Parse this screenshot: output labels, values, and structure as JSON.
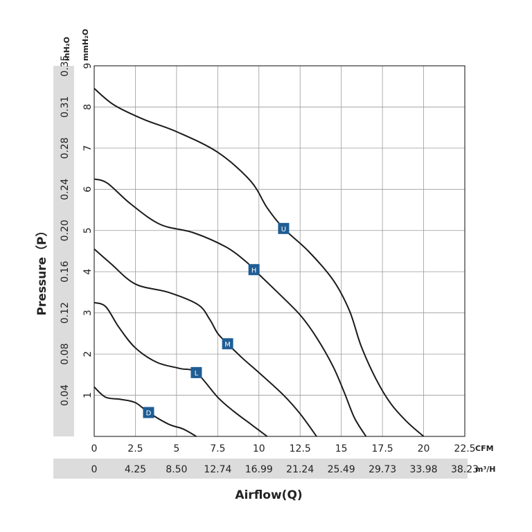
{
  "chart_data": {
    "type": "line",
    "xlabel": "Airflow(Q)",
    "ylabel": "Pressure（P）",
    "x_unit_primary": "CFM",
    "x_unit_secondary": "m³/H",
    "y_unit_primary": "mmH₂O",
    "y_unit_secondary": "inH₂O",
    "xlim": [
      0,
      22.5
    ],
    "ylim": [
      0,
      9
    ],
    "grid": true,
    "x_ticks_primary": [
      "0",
      "2.5",
      "5",
      "7.5",
      "10",
      "12.5",
      "15",
      "17.5",
      "20",
      "22.5"
    ],
    "x_ticks_secondary": [
      "0",
      "4.25",
      "8.50",
      "12.74",
      "16.99",
      "21.24",
      "25.49",
      "29.73",
      "33.98",
      "38.23"
    ],
    "y_ticks_primary": [
      "1",
      "2",
      "3",
      "4",
      "5",
      "6",
      "7",
      "8",
      "9"
    ],
    "y_ticks_secondary": [
      "0.04",
      "0.08",
      "0.12",
      "0.16",
      "0.20",
      "0.24",
      "0.28",
      "0.31",
      "0.35"
    ],
    "series": [
      {
        "name": "U",
        "label_at": [
          11.5,
          5.05
        ],
        "x": [
          0,
          1.2,
          3,
          5,
          7.5,
          9.5,
          10.5,
          11.5,
          13,
          14.5,
          15.5,
          16.2,
          17.1,
          18,
          19,
          20
        ],
        "y": [
          8.45,
          8.05,
          7.7,
          7.4,
          6.9,
          6.2,
          5.55,
          5.05,
          4.5,
          3.8,
          3.05,
          2.2,
          1.4,
          0.8,
          0.35,
          0
        ]
      },
      {
        "name": "H",
        "label_at": [
          9.7,
          4.05
        ],
        "x": [
          0,
          0.8,
          2.2,
          4,
          6,
          8,
          9.2,
          9.7,
          11,
          12.5,
          13.5,
          14.5,
          15.2,
          15.8,
          16.5
        ],
        "y": [
          6.25,
          6.15,
          5.65,
          5.15,
          4.95,
          4.6,
          4.25,
          4.05,
          3.55,
          2.95,
          2.4,
          1.7,
          1.05,
          0.45,
          0
        ]
      },
      {
        "name": "M",
        "label_at": [
          8.1,
          2.25
        ],
        "x": [
          0,
          1,
          2.5,
          4.5,
          6.3,
          7,
          7.5,
          8.1,
          9,
          10,
          11.5,
          12.5,
          13.5
        ],
        "y": [
          4.55,
          4.2,
          3.7,
          3.5,
          3.2,
          2.85,
          2.5,
          2.25,
          1.9,
          1.55,
          1.0,
          0.55,
          0
        ]
      },
      {
        "name": "L",
        "label_at": [
          6.2,
          1.55
        ],
        "x": [
          0,
          0.7,
          1.5,
          2.5,
          3.8,
          5.2,
          6.2,
          7.5,
          8.5,
          9.5,
          10.5
        ],
        "y": [
          3.25,
          3.15,
          2.65,
          2.15,
          1.8,
          1.65,
          1.55,
          0.95,
          0.6,
          0.3,
          0
        ]
      },
      {
        "name": "D",
        "label_at": [
          3.3,
          0.58
        ],
        "x": [
          0,
          0.7,
          1.6,
          2.5,
          3.3,
          4.5,
          5.4,
          6.2
        ],
        "y": [
          1.2,
          0.95,
          0.9,
          0.82,
          0.58,
          0.3,
          0.18,
          0
        ]
      }
    ],
    "line_color": "#1a1a1a",
    "badge_color": "#1f5d94",
    "band_color": "#dcdcdc",
    "grid_color": "#9a9a9a"
  }
}
